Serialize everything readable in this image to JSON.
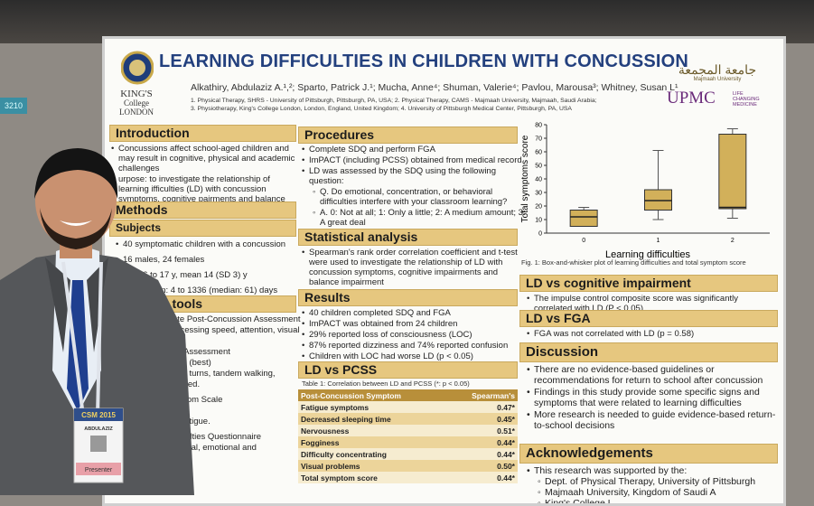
{
  "booth": "3210",
  "header": {
    "title": "LEARNING DIFFICULTIES IN CHILDREN WITH CONCUSSION",
    "authors": "Alkathiry, Abdulaziz A.¹,²; Sparto, Patrick J.¹; Mucha, Anne⁴; Shuman, Valerie⁴; Pavlou, Marousa³; Whitney, Susan L¹",
    "affiliations": [
      "1. Physical Therapy, SHRS - University of Pittsburgh, Pittsburgh, PA, USA; 2. Physical Therapy, CAMS - Majmaah University, Majmaah, Saudi Arabia;",
      "3. Physiotherapy, King's College London, London, England, United Kingdom; 4. University of Pittsburgh Medical Center, Pittsburgh, PA, USA"
    ],
    "logos": {
      "kings": [
        "KING'S",
        "College",
        "LONDON"
      ],
      "majmaah": [
        "جامعة المجمعة",
        "Majmaah University"
      ],
      "upmc": "UPMC",
      "upmc_tag": [
        "LIFE",
        "CHANGING",
        "MEDICINE"
      ]
    }
  },
  "left": {
    "introduction": {
      "heading": "Introduction",
      "items": [
        "Concussions affect school-aged children and may result in cognitive, physical and academic challenges",
        "urpose: to investigate the relationship of learning ifficulties (LD) with concussion symptoms, cognitive pairments and balance impairments"
      ]
    },
    "methods": "Methods",
    "subjects": {
      "heading": "Subjects",
      "items": [
        "40 symptomatic children with a concussion",
        "16 males, 24 females",
        "Age: 6 to 17 y, mean 14 (SD 3) y",
        "concussion: 4 to 1336 (median: 61) days"
      ]
    },
    "tools": {
      "heading": "t tools",
      "items": [
        "ate Post-Concussion Assessment",
        "rocessing speed, attention, visual",
        "ry",
        "ait Assessment",
        "to 3 (best)",
        "ead turns, tandem walking,",
        "closed.",
        "mptom Scale",
        "rse)",
        "e, fatigue.",
        "ifficulties Questionnaire",
        "avioral, emotional and"
      ]
    }
  },
  "middle": {
    "procedures": {
      "heading": "Procedures",
      "items": [
        "Complete SDQ and perform FGA",
        "ImPACT (including PCSS) obtained from medical record",
        "LD was assessed by the SDQ using the following question:"
      ],
      "subitems": [
        "Q. Do emotional, concentration, or behavioral difficulties interfere with your classroom learning?",
        "A. 0: Not at all; 1: Only a little; 2: A medium amount; 3: A great deal"
      ]
    },
    "statistics": {
      "heading": "Statistical analysis",
      "items": [
        "Spearman's rank order correlation coefficient and t-test were used to investigate the relationship of LD with concussion symptoms, cognitive impairments and balance impairment"
      ]
    },
    "results": {
      "heading": "Results",
      "items": [
        "40 children completed SDQ and FGA",
        "ImPACT was obtained from 24 children",
        "29% reported loss of consciousness (LOC)",
        "87% reported dizziness and 74% reported confusion",
        "Children with LOC had worse LD (p < 0.05)"
      ]
    },
    "pcss": {
      "heading": "LD vs PCSS",
      "caption": "Table 1: Correlation between LD and PCSS (*: p < 0.05)",
      "header": [
        "Post-Concussion Symptom",
        "Spearman's"
      ],
      "rows": [
        [
          "Fatigue symptoms",
          "0.47*"
        ],
        [
          "Decreased sleeping time",
          "0.45*"
        ],
        [
          "Nervousness",
          "0.51*"
        ],
        [
          "Fogginess",
          "0.44*"
        ],
        [
          "Difficulty concentrating",
          "0.44*"
        ],
        [
          "Visual problems",
          "0.50*"
        ],
        [
          "Total symptom score",
          "0.44*"
        ]
      ]
    }
  },
  "chart_data": {
    "type": "box",
    "caption": "Fig. 1: Box-and-whisker plot of learning difficulties and  total symptom score",
    "x_label": "Learning difficulties",
    "y_label": "Total symptoms score",
    "categories": [
      "0",
      "1",
      "2"
    ],
    "boxes": [
      {
        "min": 5,
        "q1": 5,
        "median": 12,
        "q3": 17,
        "max": 19
      },
      {
        "min": 10,
        "q1": 17,
        "median": 24,
        "q3": 32,
        "max": 61
      },
      {
        "min": 11,
        "q1": 18,
        "median": 19,
        "q3": 73,
        "max": 77
      }
    ],
    "color": "#d2b05a",
    "ylim": [
      0,
      80
    ],
    "yticks": [
      0,
      10,
      20,
      30,
      40,
      50,
      60,
      70,
      80
    ]
  },
  "right": {
    "cognitive": {
      "heading": "LD vs cognitive impairment",
      "items": [
        "The impulse control composite score was significantly correlated with LD (P < 0.05)"
      ]
    },
    "fga": {
      "heading": "LD vs FGA",
      "items": [
        "FGA was not correlated with LD (p = 0.58)"
      ]
    },
    "discussion": {
      "heading": "Discussion",
      "items": [
        "There are no evidence-based guidelines or recommendations for return to school after concussion",
        "Findings in this study provide some specific signs and symptoms that were related to learning difficulties",
        "More research is needed to guide evidence-based return-to-school decisions"
      ]
    },
    "acknowledgements": {
      "heading": "Acknowledgements",
      "items": [
        "This research was supported by the:"
      ],
      "subitems": [
        "Dept. of Physical Therapy, University of Pittsburgh",
        "Majmaah University, Kingdom of Saudi A",
        "King's College L"
      ]
    }
  },
  "badge": {
    "event": "CSM 2015",
    "name": "ABDULAZIZ",
    "role": "Presenter"
  }
}
